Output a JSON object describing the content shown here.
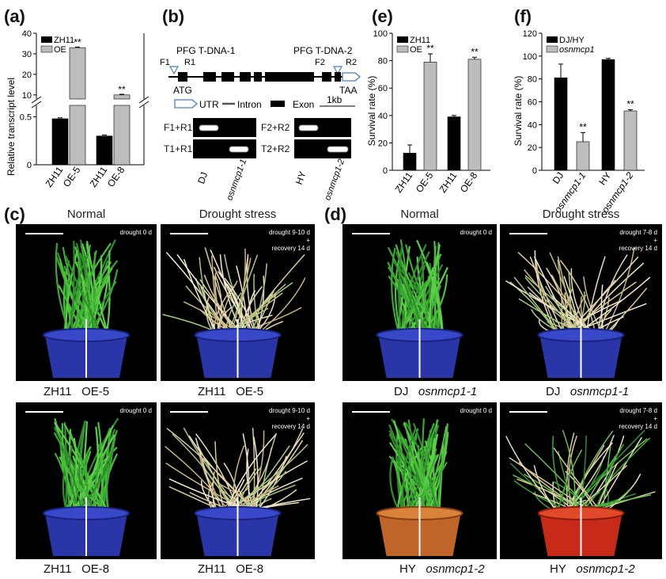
{
  "panels": {
    "a": "(a)",
    "b": "(b)",
    "c": "(c)",
    "d": "(d)",
    "e": "(e)",
    "f": "(f)"
  },
  "chart_data": [
    {
      "id": "a",
      "type": "bar",
      "ylabel": "Relative transcript level",
      "categories": [
        "ZH11",
        "OE-5",
        "ZH11",
        "OE-8"
      ],
      "series": [
        {
          "name": "ZH11",
          "color": "#000000",
          "values": [
            0.48,
            null,
            0.3,
            null
          ]
        },
        {
          "name": "OE",
          "color": "#bdbdbd",
          "values": [
            null,
            33,
            null,
            10
          ]
        }
      ],
      "errors": [
        0.01,
        0.3,
        0.01,
        0.3
      ],
      "significance": [
        "",
        "**",
        "",
        "**"
      ],
      "yticks_lower": [
        "0",
        "0.5"
      ],
      "yticks_upper": [
        "10",
        "20",
        "30",
        "40"
      ],
      "ylim_lower": [
        0,
        0.62
      ],
      "ylim_upper": [
        8,
        40
      ],
      "legend": [
        "ZH11",
        "OE"
      ]
    },
    {
      "id": "e",
      "type": "bar",
      "ylabel": "Survival rate (%)",
      "categories": [
        "ZH11",
        "OE-5",
        "ZH11",
        "OE-8"
      ],
      "series": [
        {
          "name": "ZH11",
          "color": "#000000",
          "values": [
            12.5,
            null,
            39,
            null
          ]
        },
        {
          "name": "OE",
          "color": "#bdbdbd",
          "values": [
            null,
            79,
            null,
            81
          ]
        }
      ],
      "errors": [
        6,
        6,
        1,
        1.5
      ],
      "significance": [
        "",
        "**",
        "",
        "**"
      ],
      "yticks": [
        "0",
        "20",
        "40",
        "60",
        "80",
        "100"
      ],
      "ylim": [
        0,
        100
      ],
      "legend": [
        "ZH11",
        "OE"
      ]
    },
    {
      "id": "f",
      "type": "bar",
      "ylabel": "Survival rate (%)",
      "categories": [
        "DJ",
        "osnmcp1-1",
        "HY",
        "osnmcp1-2"
      ],
      "series": [
        {
          "name": "DJ/HY",
          "color": "#000000",
          "values": [
            81,
            null,
            97,
            null
          ]
        },
        {
          "name": "osnmcp1",
          "color": "#bdbdbd",
          "values": [
            null,
            25,
            null,
            52
          ]
        }
      ],
      "errors": [
        12,
        8,
        1,
        1
      ],
      "significance": [
        "",
        "**",
        "",
        "**"
      ],
      "yticks": [
        "0",
        "20",
        "40",
        "60",
        "80",
        "100",
        "120"
      ],
      "ylim": [
        0,
        120
      ],
      "legend": [
        "DJ/HY",
        "osnmcp1"
      ]
    }
  ],
  "gene": {
    "tdna1": "PFG T-DNA-1",
    "tdna2": "PFG T-DNA-2",
    "f1": "F1",
    "r1": "R1",
    "f2": "F2",
    "r2": "R2",
    "atg": "ATG",
    "taa": "TAA",
    "utr": "UTR",
    "intron": "Intron",
    "exon": "Exon",
    "scale": "1kb"
  },
  "gel": {
    "rows_left": [
      "F1+R1",
      "T1+R1"
    ],
    "rows_right": [
      "F2+R2",
      "T2+R2"
    ],
    "lanes": [
      "DJ",
      "osnmcp1-1",
      "HY",
      "osnmcp1-2"
    ]
  },
  "photos": {
    "normal": "Normal",
    "drought": "Drought stress",
    "tag_normal": "drought 0 d",
    "tag_c_drought_1": "drought 9-10 d",
    "tag_d_drought_1": "drought 7-8 d",
    "tag_plus": "+",
    "tag_recovery": "recovery 14 d",
    "c_row1_left": "ZH11",
    "c_row1_right": "OE-5",
    "c_row2_left": "ZH11",
    "c_row2_right": "OE-8",
    "d_row1_left": "DJ",
    "d_row1_right": "osnmcp1-1",
    "d_row2_left": "HY",
    "d_row2_right": "osnmcp1-2"
  }
}
